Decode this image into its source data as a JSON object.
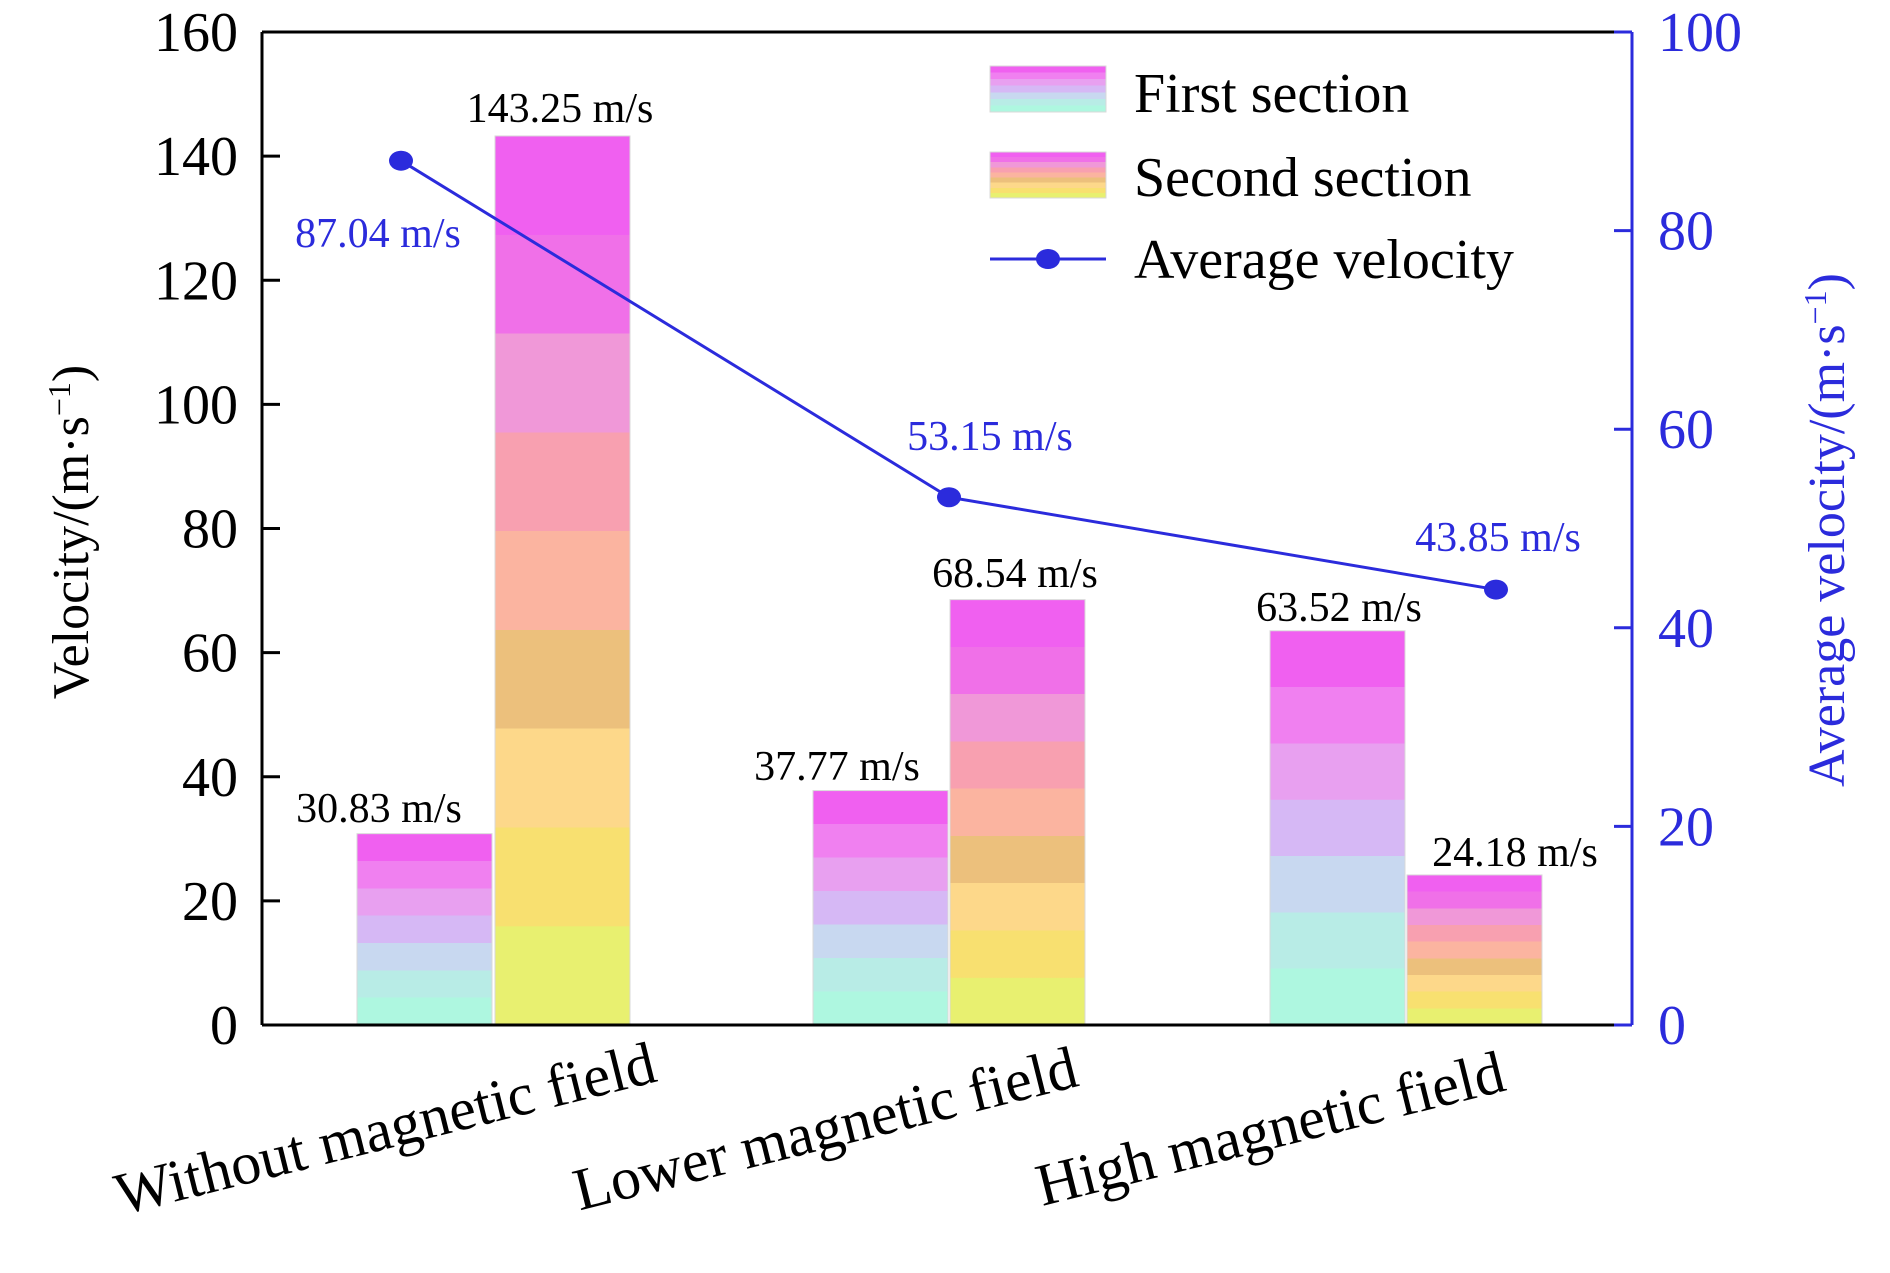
{
  "chart_data": {
    "type": "bar",
    "categories": [
      "Without magnetic field",
      "Lower magnetic field",
      "High magnetic field"
    ],
    "series": [
      {
        "name": "First section",
        "values": [
          30.83,
          37.77,
          63.52
        ],
        "value_labels": [
          "30.83 m/s",
          "37.77 m/s",
          "63.52 m/s"
        ]
      },
      {
        "name": "Second section",
        "values": [
          143.25,
          68.54,
          24.18
        ],
        "value_labels": [
          "143.25 m/s",
          "68.54 m/s",
          "24.18 m/s"
        ]
      },
      {
        "name": "Average velocity",
        "type": "line",
        "axis": "right",
        "values": [
          87.04,
          53.15,
          43.85
        ],
        "value_labels": [
          "87.04 m/s",
          "53.15 m/s",
          "43.85 m/s"
        ]
      }
    ],
    "ylabel_left": {
      "main": "Velocity/(m·s",
      "sup": "−1",
      "close": ")"
    },
    "ylabel_right": {
      "main": "Average velocity/(m·s",
      "sup": "−1",
      "close": ")"
    },
    "ylim_left": [
      0,
      160
    ],
    "ylim_right": [
      0,
      100
    ],
    "yticks_left": [
      "0",
      "20",
      "40",
      "60",
      "80",
      "100",
      "120",
      "140",
      "160"
    ],
    "yticks_right": [
      "0",
      "20",
      "40",
      "60",
      "80",
      "100"
    ],
    "legend": {
      "placement": "top-right"
    },
    "grid": false,
    "colors": {
      "line": "#2b2bdc",
      "right_axis": "#2b2bdc",
      "first_gradient": [
        "#aef7e0",
        "#b8ece6",
        "#c8d8f0",
        "#d6b8f5",
        "#e8a0f0",
        "#f080f0",
        "#f060f0"
      ],
      "second_gradient": [
        "#e8f070",
        "#f8e070",
        "#fdd88a",
        "#ecc07c",
        "#fbb4a0",
        "#f8a0b0",
        "#f098d8",
        "#f070e8",
        "#f060f0"
      ]
    }
  }
}
